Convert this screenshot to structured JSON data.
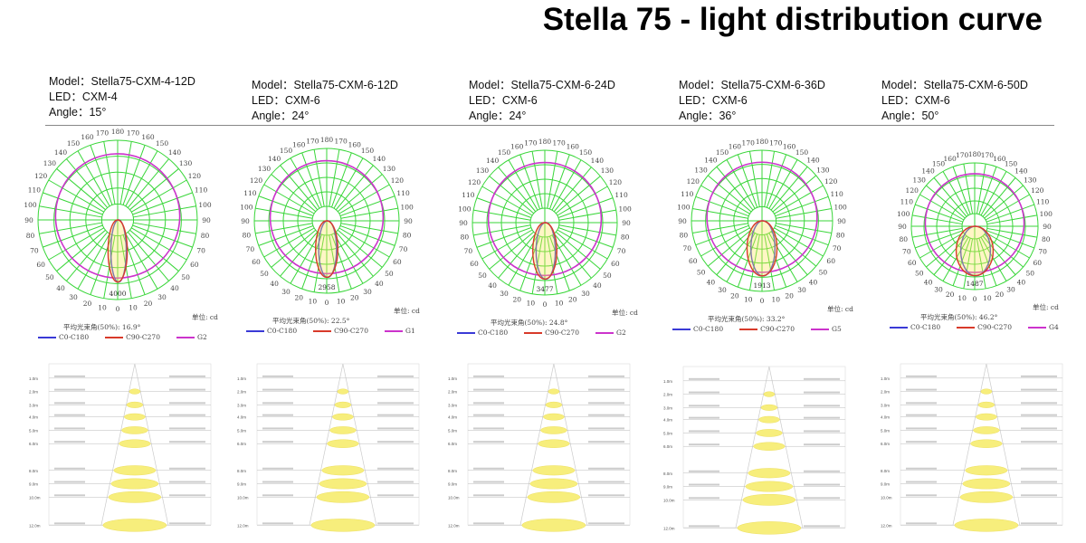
{
  "title": "Stella 75 - light distribution curve",
  "common": {
    "unit_label": "单位: cd",
    "beam_label_prefix": "平均光束角(50%): ",
    "legend": [
      {
        "label": "C0-C180",
        "color": "#3a3ad6"
      },
      {
        "label": "C90-C270",
        "color": "#d83a2a"
      }
    ],
    "g_color": "#cc33cc",
    "grid_color": "#39d639",
    "angle_ticks": [
      0,
      10,
      20,
      30,
      40,
      50,
      60,
      70,
      80,
      90,
      100,
      110,
      120,
      130,
      140,
      150,
      160,
      170,
      180
    ],
    "table_heights": [
      "1.0m",
      "2.0m",
      "3.0m",
      "4.0m",
      "5.0m",
      "6.0m",
      "8.0m",
      "9.0m",
      "10.0m",
      "12.0m"
    ]
  },
  "models": [
    {
      "model": "Model：Stella75-CXM-4-12D",
      "led": "LED：CXM-4",
      "angle": "Angle：15°",
      "max_cd": "4000",
      "beam": "16.9°",
      "g_label": "G2",
      "beam_deg": 16.9
    },
    {
      "model": "Model：Stella75-CXM-6-12D",
      "led": "LED：CXM-6",
      "angle": "Angle：24°",
      "max_cd": "2958",
      "beam": "22.5°",
      "g_label": "G1",
      "beam_deg": 22.5
    },
    {
      "model": "Model：Stella75-CXM-6-24D",
      "led": "LED：CXM-6",
      "angle": "Angle：24°",
      "max_cd": "3477",
      "beam": "24.8°",
      "g_label": "G2",
      "beam_deg": 24.8
    },
    {
      "model": "Model：Stella75-CXM-6-36D",
      "led": "LED：CXM-6",
      "angle": "Angle：36°",
      "max_cd": "1913",
      "beam": "33.2°",
      "g_label": "G5",
      "beam_deg": 33.2
    },
    {
      "model": "Model：Stella75-CXM-6-50D",
      "led": "LED：CXM-6",
      "angle": "Angle：50°",
      "max_cd": "1487",
      "beam": "46.2°",
      "g_label": "G4",
      "beam_deg": 46.2
    }
  ]
}
